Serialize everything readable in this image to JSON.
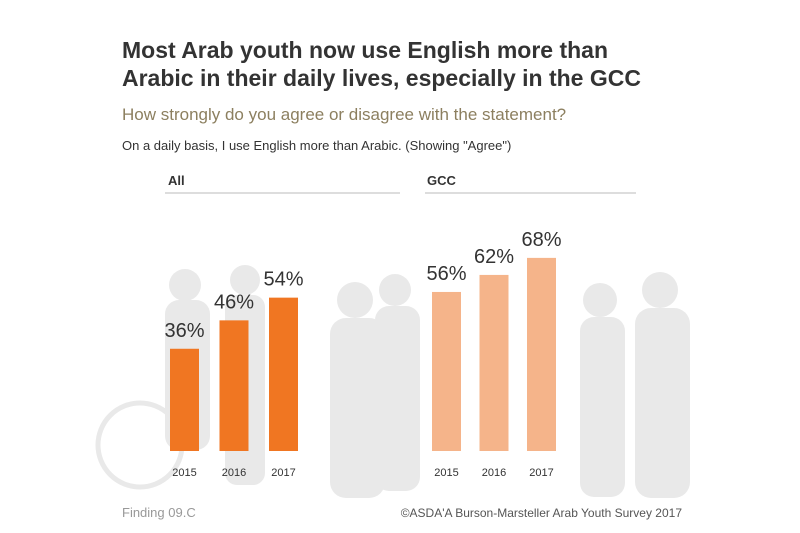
{
  "title_lines": [
    "Most Arab youth now use English more than",
    "Arabic in their daily lives, especially in the GCC"
  ],
  "subtitle": "How strongly do you agree or disagree with the statement?",
  "statement": "On a daily basis, I use English more than Arabic. (Showing \"Agree\")",
  "footer_left": "Finding 09.C",
  "footer_right": "©ASDA'A Burson-Marsteller Arab Youth Survey 2017",
  "chart_data": [
    {
      "type": "bar",
      "title": "All",
      "categories": [
        "2015",
        "2016",
        "2017"
      ],
      "values": [
        36,
        46,
        54
      ],
      "value_labels": [
        "36%",
        "46%",
        "54%"
      ],
      "color": "#f07622"
    },
    {
      "type": "bar",
      "title": "GCC",
      "categories": [
        "2015",
        "2016",
        "2017"
      ],
      "values": [
        56,
        62,
        68
      ],
      "value_labels": [
        "56%",
        "62%",
        "68%"
      ],
      "color": "#f5b48a"
    }
  ]
}
